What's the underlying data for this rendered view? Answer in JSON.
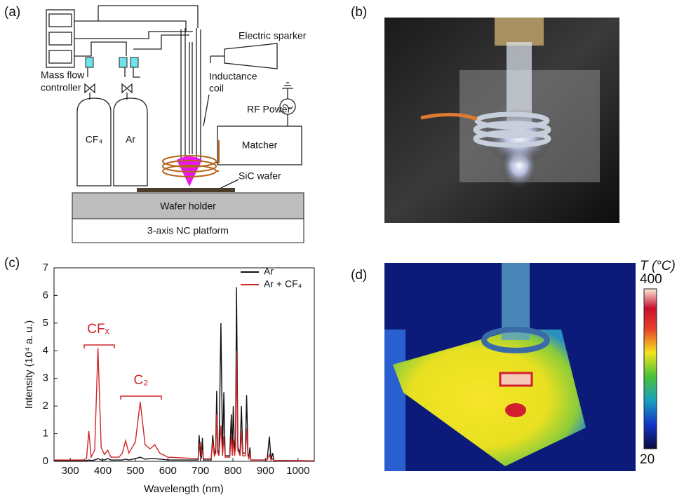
{
  "panels": {
    "a": {
      "label": "(a)",
      "electric_sparker": "Electric sparker",
      "inductance_coil": [
        "Inductance",
        "coil"
      ],
      "mass_flow_controller": [
        "Mass flow",
        "controller"
      ],
      "rf_power": "RF Power",
      "matcher": "Matcher",
      "gas_1": "CF₄",
      "gas_2": "Ar",
      "sic_wafer": "SiC  wafer",
      "wafer_holder": "Wafer holder",
      "platform": "3-axis NC platform"
    },
    "b": {
      "label": "(b)"
    },
    "c": {
      "label": "(c)"
    },
    "d": {
      "label": "(d)",
      "colorbar_title": "T (°C)",
      "colorbar_max": 400,
      "colorbar_min": 20
    }
  },
  "chart_data": {
    "type": "line",
    "x_label": "Wavelength (nm)",
    "y_label": "Intensity (10⁴ a. u.)",
    "annotations": [
      "CFₓ",
      "C₂"
    ],
    "x": [
      250,
      340,
      350,
      357,
      364,
      375,
      385,
      395,
      405,
      415,
      425,
      450,
      460,
      470,
      480,
      500,
      515,
      530,
      545,
      560,
      575,
      600,
      690,
      693,
      696,
      700,
      703,
      706,
      709,
      733,
      738,
      743,
      747,
      750,
      753,
      757,
      763,
      768,
      772,
      776,
      790,
      795,
      798,
      801,
      805,
      808,
      811,
      815,
      822,
      826,
      830,
      838,
      842,
      846,
      849,
      852,
      855,
      905,
      912,
      917,
      922,
      926,
      1050
    ],
    "series": [
      {
        "name": "Ar",
        "color": "#111111",
        "values": [
          0.02,
          0.02,
          0.03,
          0.05,
          0.03,
          0.05,
          0.1,
          0.05,
          0.05,
          0.1,
          0.05,
          0.05,
          0.05,
          0.08,
          0.05,
          0.1,
          0.15,
          0.08,
          0.1,
          0.1,
          0.08,
          0.05,
          0.05,
          0.05,
          0.95,
          0.2,
          0.1,
          0.85,
          0.05,
          0.05,
          0.95,
          0.2,
          0.5,
          2.55,
          0.4,
          0.3,
          5.0,
          0.3,
          2.5,
          0.2,
          0.2,
          1.7,
          0.3,
          2.0,
          0.3,
          0.8,
          6.3,
          0.5,
          0.3,
          2.0,
          0.3,
          0.3,
          2.4,
          0.3,
          0.1,
          0.5,
          0.05,
          0.05,
          0.9,
          0.05,
          0.3,
          0.03,
          0.02
        ]
      },
      {
        "name": "Ar + CF₄",
        "color": "#d0262a",
        "values": [
          0.05,
          0.05,
          0.1,
          1.1,
          0.15,
          0.4,
          4.1,
          0.5,
          0.25,
          0.4,
          0.15,
          0.15,
          0.3,
          0.75,
          0.3,
          0.7,
          2.15,
          0.6,
          0.45,
          0.6,
          0.3,
          0.15,
          0.1,
          0.1,
          0.5,
          0.7,
          0.2,
          0.4,
          0.1,
          0.1,
          0.7,
          0.2,
          0.3,
          1.7,
          0.3,
          0.2,
          1.3,
          0.2,
          0.9,
          0.15,
          0.15,
          0.9,
          0.2,
          0.8,
          0.2,
          0.5,
          4.0,
          0.4,
          0.2,
          1.1,
          0.2,
          0.2,
          1.2,
          0.2,
          0.1,
          0.3,
          0.05,
          0.05,
          0.25,
          0.05,
          0.1,
          0.03,
          0.02
        ]
      }
    ],
    "xlim": [
      250,
      1050
    ],
    "xticks": [
      300,
      400,
      500,
      600,
      700,
      800,
      900,
      1000
    ],
    "ylim": [
      0,
      7
    ],
    "yticks": [
      0,
      1,
      2,
      3,
      4,
      5,
      6,
      7
    ],
    "legend": "upper right"
  }
}
